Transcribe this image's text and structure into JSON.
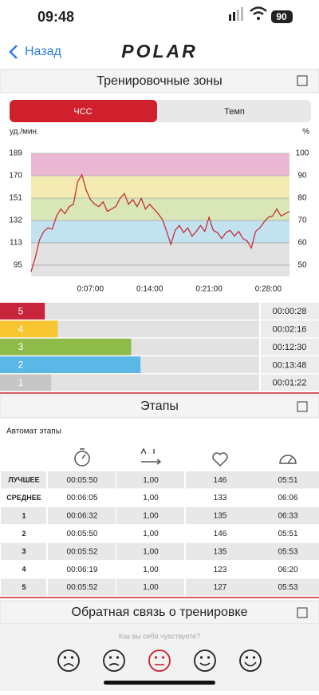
{
  "status_bar": {
    "time": "09:48",
    "battery": "90"
  },
  "nav": {
    "back": "Назад",
    "logo": "POLAR"
  },
  "zones_section": {
    "title": "Тренировочные зоны",
    "tabs": [
      "ЧСС",
      "Темп"
    ]
  },
  "chart_data": [
    {
      "type": "line",
      "y_label": "уд./мин.",
      "y2_label": "%",
      "color": "#c8202c",
      "x": [
        0,
        30,
        60,
        90,
        120,
        150,
        180,
        210,
        240,
        270,
        300,
        330,
        360,
        390,
        420,
        450,
        480,
        510,
        540,
        570,
        600,
        630,
        660,
        690,
        720,
        750,
        780,
        810,
        840,
        870,
        900,
        930,
        960,
        990,
        1020,
        1050,
        1080,
        1110,
        1140,
        1170,
        1200,
        1230,
        1260,
        1290,
        1320,
        1350,
        1380,
        1410,
        1440,
        1470,
        1500,
        1530,
        1560,
        1590,
        1620,
        1650,
        1680,
        1710,
        1740,
        1770,
        1800,
        1830
      ],
      "values": [
        89,
        101,
        116,
        123,
        126,
        125,
        136,
        142,
        138,
        144,
        146,
        165,
        171,
        158,
        150,
        146,
        144,
        148,
        140,
        142,
        144,
        151,
        155,
        146,
        150,
        144,
        151,
        142,
        146,
        142,
        138,
        133,
        123,
        112,
        124,
        128,
        122,
        126,
        119,
        123,
        128,
        123,
        135,
        124,
        122,
        117,
        122,
        124,
        119,
        123,
        117,
        115,
        109,
        123,
        126,
        131,
        135,
        136,
        142,
        136,
        138,
        140
      ],
      "xlim": [
        0,
        1830
      ],
      "xticks": [
        {
          "value": 420,
          "label": "0:07:00"
        },
        {
          "value": 840,
          "label": "0:14:00"
        },
        {
          "value": 1260,
          "label": "0:21:00"
        },
        {
          "value": 1680,
          "label": "0:28:00"
        }
      ],
      "ylim": [
        85,
        189
      ],
      "yticks": [
        189,
        {
          "value": 170.1,
          "label": "170"
        },
        {
          "value": 151.2,
          "label": "151"
        },
        {
          "value": 132.3,
          "label": "132"
        },
        {
          "value": 113.4,
          "label": "113"
        },
        {
          "value": 94.5,
          "label": "95"
        }
      ],
      "y2lim": [
        45,
        100
      ],
      "y2ticks": [
        100,
        90,
        80,
        70,
        60,
        50
      ],
      "band_colors": [
        "#ebb8d3",
        "#f4ebb3",
        "#d8e6b8",
        "#c2e2ef",
        "#e2e2e2"
      ],
      "grid": true
    },
    {
      "type": "bar",
      "orientation": "horizontal",
      "categories": [
        "5",
        "4",
        "3",
        "2",
        "1"
      ],
      "values": [
        28,
        136,
        750,
        828,
        82
      ],
      "value_labels": [
        "00:00:28",
        "00:02:16",
        "00:12:30",
        "00:13:48",
        "00:01:22"
      ],
      "colors": [
        "#c8243c",
        "#f6c530",
        "#8fbb4b",
        "#5bb8e6",
        "#c6c6c6"
      ]
    }
  ],
  "laps_section": {
    "title": "Этапы",
    "subtitle": "Автомат этапы",
    "table": {
      "rows": [
        [
          "ЛУЧШЕЕ",
          "00:05:50",
          "1,00",
          "146",
          "05:51"
        ],
        [
          "СРЕДНЕЕ",
          "00:06:05",
          "1,00",
          "133",
          "06:06"
        ],
        [
          "1",
          "00:06:32",
          "1,00",
          "135",
          "06:33"
        ],
        [
          "2",
          "00:05:50",
          "1,00",
          "146",
          "05:51"
        ],
        [
          "3",
          "00:05:52",
          "1,00",
          "135",
          "05:53"
        ],
        [
          "4",
          "00:06:19",
          "1,00",
          "123",
          "06:20"
        ],
        [
          "5",
          "00:05:52",
          "1,00",
          "127",
          "05:53"
        ]
      ]
    }
  },
  "feedback_section": {
    "title": "Обратная связь о тренировке",
    "question": "Как вы себя чувствуете?"
  }
}
